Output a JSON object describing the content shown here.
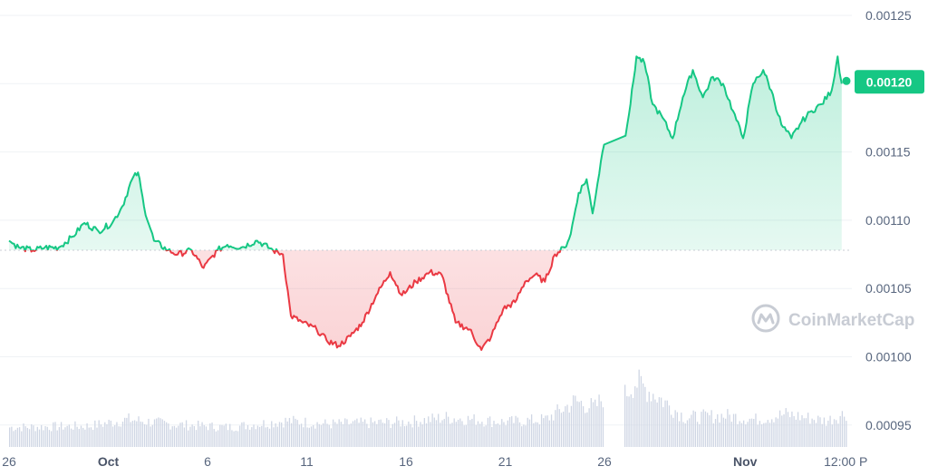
{
  "chart_data": {
    "type": "line",
    "y_axis_labels": [
      "0.00125",
      "0.00120",
      "0.00115",
      "0.00110",
      "0.00105",
      "0.00100",
      "0.00095"
    ],
    "ylim": [
      0.00093,
      0.001265
    ],
    "y_ticks": [
      0.00125,
      0.0012,
      0.00115,
      0.0011,
      0.00105,
      0.001,
      0.00095
    ],
    "baseline": 0.001078,
    "x_ticks": [
      {
        "label": "26",
        "day": 0,
        "bold": false
      },
      {
        "label": "Oct",
        "day": 5,
        "bold": true
      },
      {
        "label": "6",
        "day": 10,
        "bold": false
      },
      {
        "label": "11",
        "day": 15,
        "bold": false
      },
      {
        "label": "16",
        "day": 20,
        "bold": false
      },
      {
        "label": "21",
        "day": 25,
        "bold": false
      },
      {
        "label": "26",
        "day": 30,
        "bold": false
      },
      {
        "label": "Nov",
        "day": 36,
        "bold": true
      },
      {
        "label": "12:00 P",
        "day": 41,
        "bold": false
      }
    ],
    "x_range_days": [
      0,
      42
    ],
    "price_points": [
      [
        0.0,
        0.001085
      ],
      [
        0.5,
        0.00108
      ],
      [
        1.2,
        0.001078
      ],
      [
        1.8,
        0.00108
      ],
      [
        2.5,
        0.00108
      ],
      [
        3.2,
        0.001088
      ],
      [
        3.8,
        0.001098
      ],
      [
        4.5,
        0.001092
      ],
      [
        5.2,
        0.001098
      ],
      [
        5.7,
        0.00111
      ],
      [
        6.2,
        0.00113
      ],
      [
        6.5,
        0.001135
      ],
      [
        6.8,
        0.00111
      ],
      [
        7.3,
        0.001085
      ],
      [
        8.0,
        0.001078
      ],
      [
        8.5,
        0.001075
      ],
      [
        9.2,
        0.001078
      ],
      [
        9.8,
        0.001065
      ],
      [
        10.5,
        0.001078
      ],
      [
        11.0,
        0.001082
      ],
      [
        11.7,
        0.00108
      ],
      [
        12.5,
        0.001085
      ],
      [
        13.3,
        0.001078
      ],
      [
        13.8,
        0.001075
      ],
      [
        14.2,
        0.00103
      ],
      [
        14.8,
        0.001025
      ],
      [
        15.5,
        0.00102
      ],
      [
        16.0,
        0.001012
      ],
      [
        16.6,
        0.001008
      ],
      [
        17.2,
        0.001015
      ],
      [
        17.8,
        0.001025
      ],
      [
        18.5,
        0.001045
      ],
      [
        19.2,
        0.001062
      ],
      [
        19.8,
        0.001045
      ],
      [
        20.5,
        0.001055
      ],
      [
        21.2,
        0.001062
      ],
      [
        21.8,
        0.00106
      ],
      [
        22.5,
        0.001025
      ],
      [
        23.2,
        0.00102
      ],
      [
        23.8,
        0.001005
      ],
      [
        24.3,
        0.001015
      ],
      [
        24.9,
        0.001035
      ],
      [
        25.5,
        0.00104
      ],
      [
        26.0,
        0.001055
      ],
      [
        26.5,
        0.00106
      ],
      [
        27.0,
        0.001055
      ],
      [
        27.5,
        0.001075
      ],
      [
        28.0,
        0.00108
      ],
      [
        28.3,
        0.00109
      ],
      [
        28.7,
        0.00112
      ],
      [
        29.1,
        0.00113
      ],
      [
        29.4,
        0.001105
      ],
      [
        29.9,
        0.00115
      ],
      [
        30.3,
        0.001185
      ],
      [
        30.6,
        0.00122
      ],
      [
        31.0,
        0.001215
      ],
      [
        31.4,
        0.001185
      ],
      [
        31.9,
        0.001175
      ],
      [
        32.4,
        0.00116
      ],
      [
        32.9,
        0.00119
      ],
      [
        33.4,
        0.00121
      ],
      [
        33.9,
        0.00119
      ],
      [
        34.4,
        0.001205
      ],
      [
        34.9,
        0.0012
      ],
      [
        35.4,
        0.00118
      ],
      [
        35.9,
        0.00116
      ],
      [
        36.4,
        0.0012
      ],
      [
        36.9,
        0.00121
      ],
      [
        37.3,
        0.001195
      ],
      [
        37.8,
        0.00117
      ],
      [
        38.3,
        0.00116
      ],
      [
        38.8,
        0.001172
      ],
      [
        39.3,
        0.00118
      ],
      [
        39.8,
        0.001185
      ],
      [
        40.3,
        0.001195
      ],
      [
        40.6,
        0.00122
      ],
      [
        40.8,
        0.0012
      ]
    ],
    "current_price_label": "0.00120",
    "current_price": 0.0012,
    "colors": {
      "up": "#16c784",
      "down": "#ea3943",
      "badge": "#16c784",
      "grid": "#eff2f5",
      "baseline": "#c8ccd4",
      "axis_text": "#58667e",
      "volume": "#cfd6e4"
    },
    "volume_profile": [
      [
        0,
        0.3
      ],
      [
        4,
        0.32
      ],
      [
        6,
        0.42
      ],
      [
        8,
        0.35
      ],
      [
        11,
        0.3
      ],
      [
        14,
        0.4
      ],
      [
        16,
        0.35
      ],
      [
        20,
        0.38
      ],
      [
        22,
        0.45
      ],
      [
        25,
        0.38
      ],
      [
        27,
        0.42
      ],
      [
        28.5,
        0.7
      ],
      [
        29.5,
        0.6
      ],
      [
        30.5,
        1.0
      ],
      [
        31.5,
        0.8
      ],
      [
        33,
        0.45
      ],
      [
        35,
        0.48
      ],
      [
        36.5,
        0.42
      ],
      [
        38,
        0.5
      ],
      [
        40,
        0.4
      ],
      [
        41,
        0.52
      ]
    ]
  },
  "watermark": {
    "text": "CoinMarketCap",
    "icon": "coinmarketcap-logo-icon"
  }
}
